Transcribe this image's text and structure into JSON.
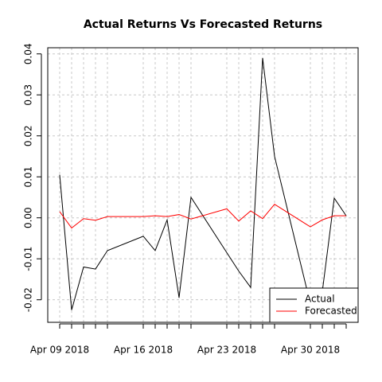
{
  "chart_data": {
    "type": "line",
    "title": "Actual Returns Vs Forecasted Returns",
    "x": [
      "2018-04-09",
      "2018-04-10",
      "2018-04-11",
      "2018-04-12",
      "2018-04-13",
      "2018-04-16",
      "2018-04-17",
      "2018-04-18",
      "2018-04-19",
      "2018-04-20",
      "2018-04-23",
      "2018-04-24",
      "2018-04-25",
      "2018-04-26",
      "2018-04-27",
      "2018-04-30",
      "2018-05-01",
      "2018-05-02",
      "2018-05-03"
    ],
    "series": [
      {
        "name": "Actual",
        "color": "#000000",
        "values": [
          0.0105,
          -0.0225,
          -0.012,
          -0.0125,
          -0.008,
          -0.0045,
          -0.008,
          -0.0005,
          -0.0195,
          0.005,
          -0.0085,
          -0.013,
          -0.017,
          0.039,
          0.015,
          -0.021,
          -0.018,
          0.0048,
          0.0005
        ]
      },
      {
        "name": "Forecasted",
        "color": "#ff0000",
        "values": [
          0.0015,
          -0.0025,
          -0.0002,
          -0.0006,
          0.0003,
          0.0003,
          0.0005,
          0.0003,
          0.0008,
          -0.0003,
          0.0022,
          -0.0008,
          0.0017,
          -0.0002,
          0.0033,
          -0.0022,
          -0.0005,
          0.0005,
          0.0005
        ]
      }
    ],
    "xlim": [
      "2018-04-08",
      "2018-05-04"
    ],
    "xticks": [
      {
        "value": "2018-04-09",
        "label": "Apr 09 2018"
      },
      {
        "value": "2018-04-16",
        "label": "Apr 16 2018"
      },
      {
        "value": "2018-04-23",
        "label": "Apr 23 2018"
      },
      {
        "value": "2018-04-30",
        "label": "Apr 30 2018"
      }
    ],
    "ylim": [
      -0.0255,
      0.0415
    ],
    "yticks": [
      -0.02,
      -0.01,
      {
        "value": 0,
        "label": "0.00"
      },
      0.01,
      0.02,
      0.03,
      0.04
    ],
    "grid": true,
    "legend": "bottom-right"
  }
}
